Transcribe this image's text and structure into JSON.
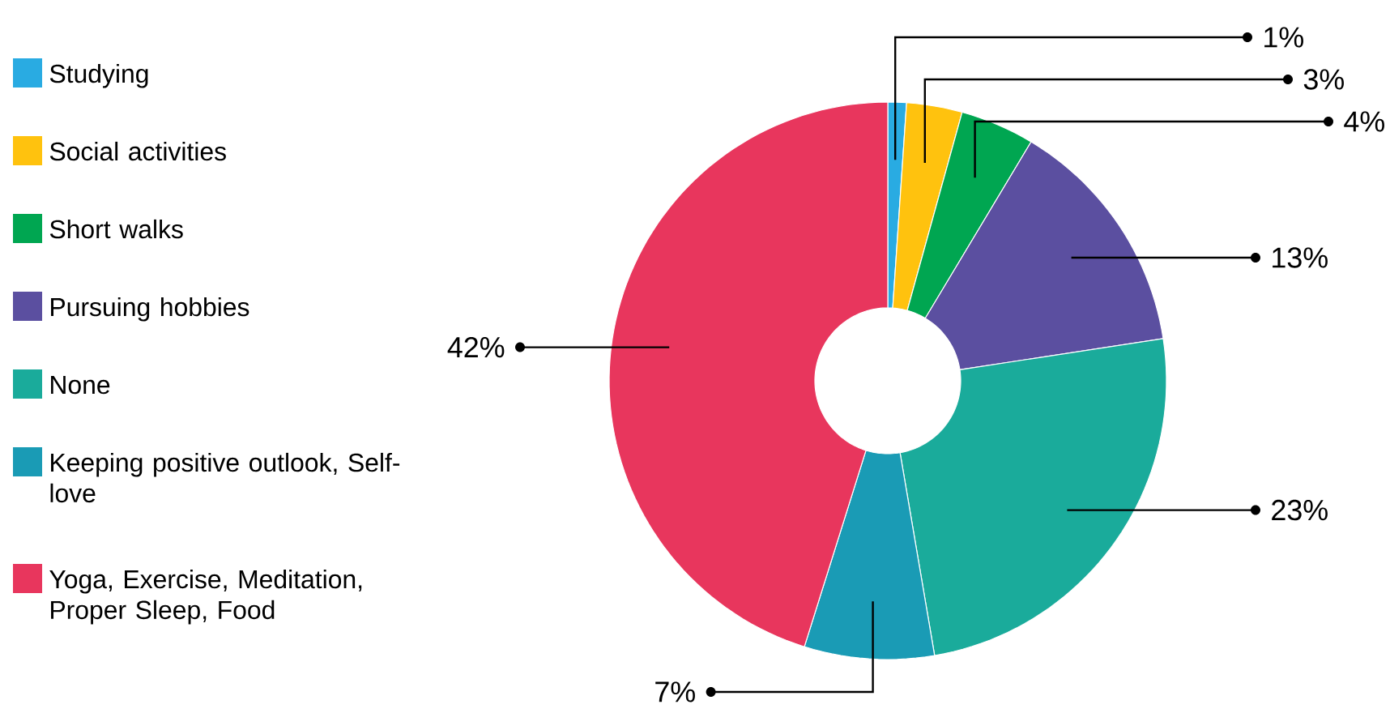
{
  "chart_data": {
    "type": "donut",
    "categories": [
      "Studying",
      "Social activities",
      "Short walks",
      "Pursuing hobbies",
      "None",
      "Keeping positive outlook, Self-love",
      "Yoga, Exercise, Meditation, Proper Sleep, Food"
    ],
    "values": [
      1,
      3,
      4,
      13,
      23,
      7,
      42
    ],
    "value_labels": [
      "1%",
      "3%",
      "4%",
      "13%",
      "23%",
      "7%",
      "42%"
    ],
    "colors": [
      "#29abe2",
      "#ffc20e",
      "#00a651",
      "#5b4fa0",
      "#1aab9b",
      "#1a9bb5",
      "#e8365d"
    ],
    "legend": "left"
  }
}
